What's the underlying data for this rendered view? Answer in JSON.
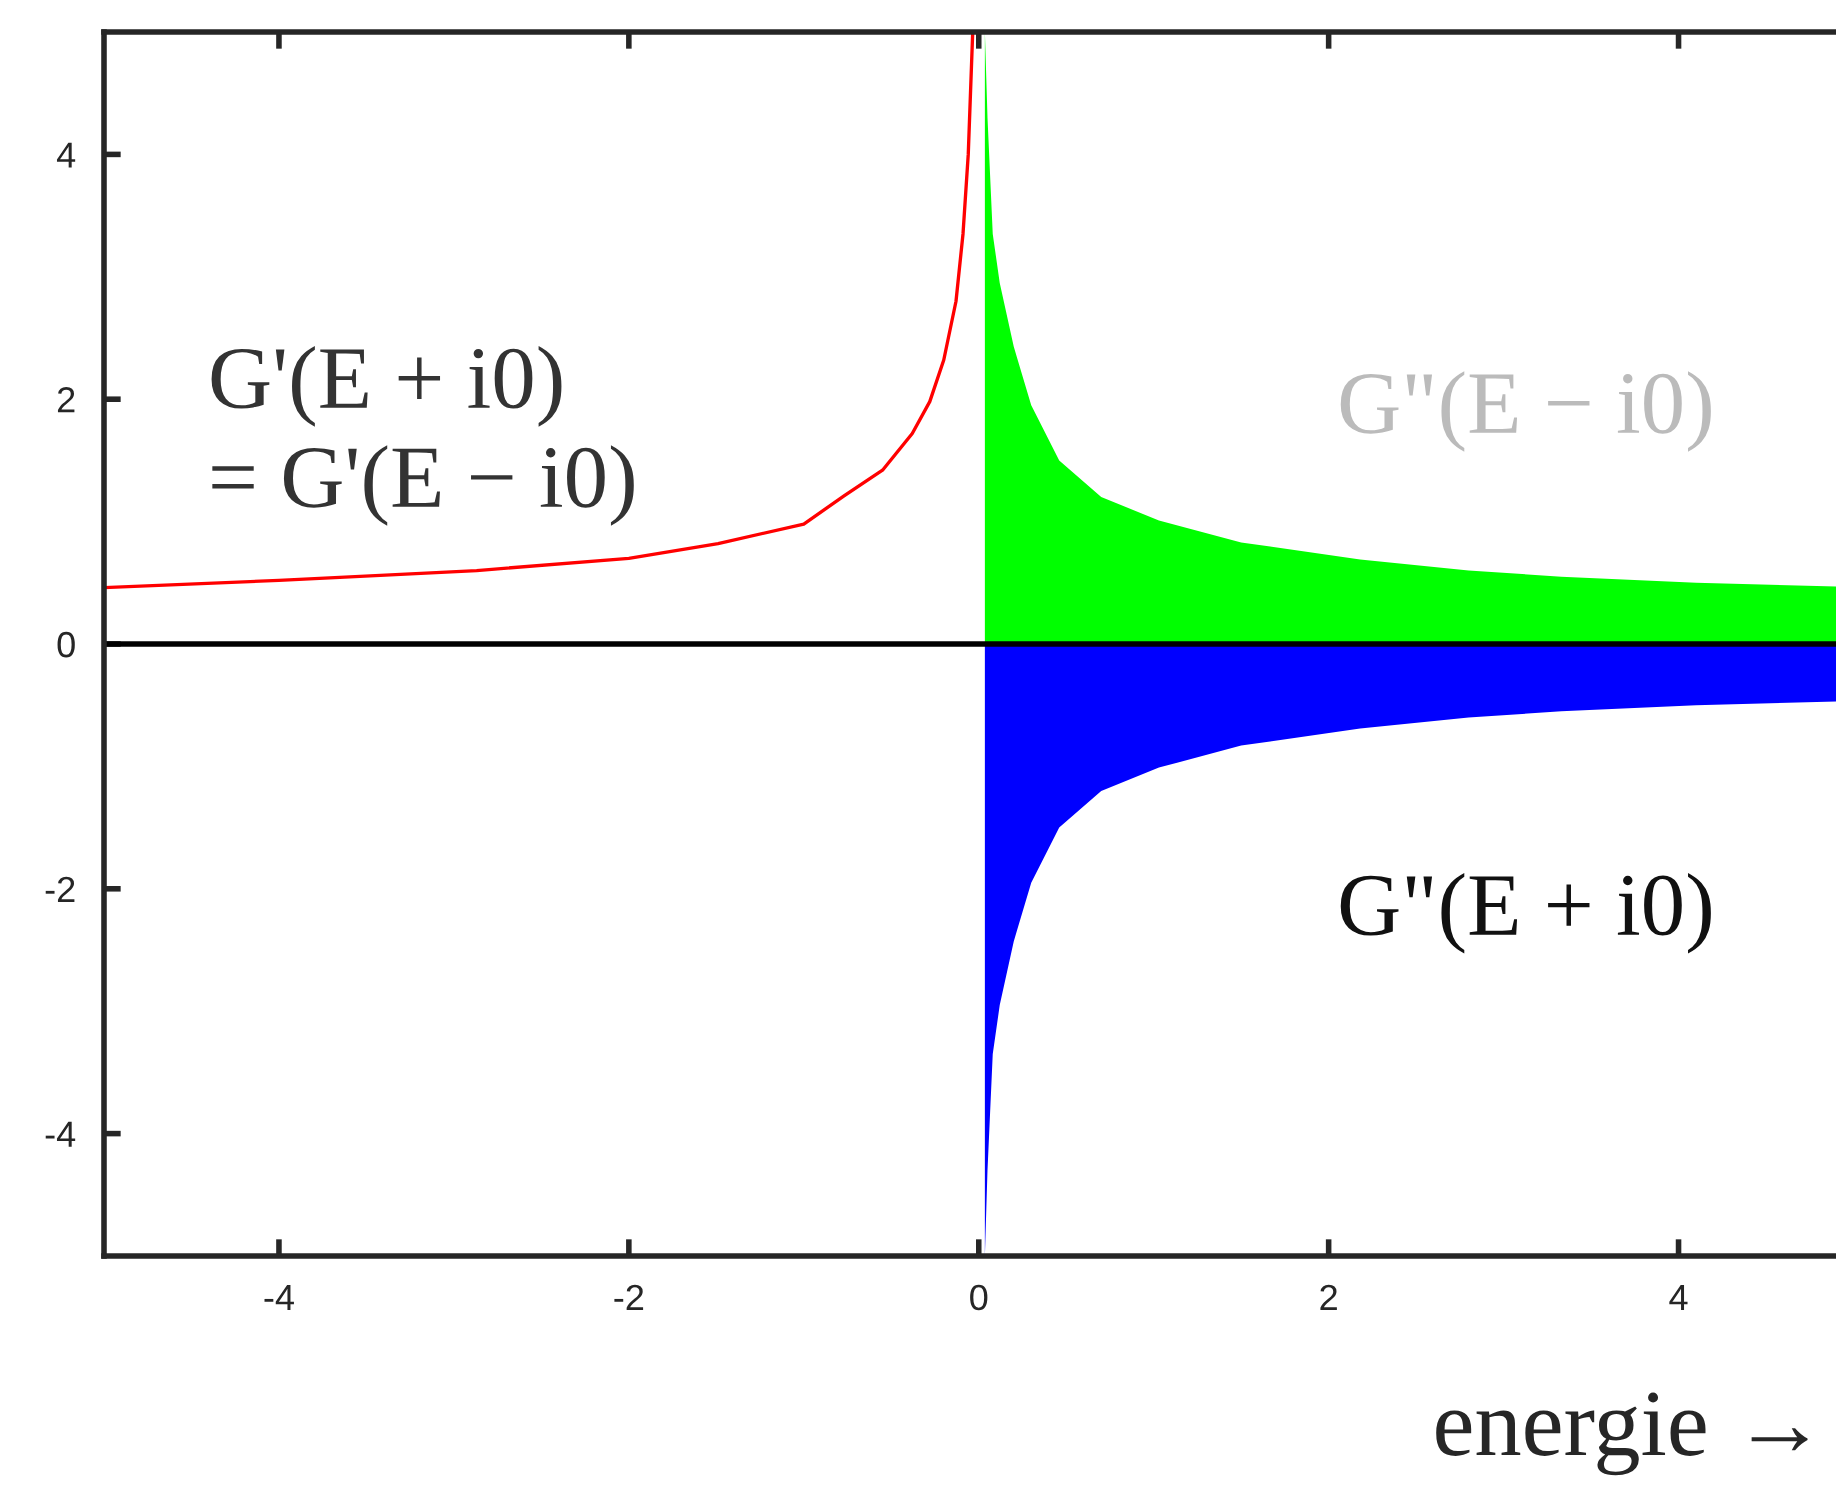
{
  "chart_data": {
    "type": "line",
    "xlabel": "energie →",
    "xlim": [
      -5,
      4.9
    ],
    "ylim": [
      -5,
      5
    ],
    "xticks": [
      -4,
      -2,
      0,
      2,
      4
    ],
    "yticks": [
      -4,
      -2,
      0,
      2,
      4
    ],
    "grid": false,
    "legend": false,
    "series": [
      {
        "color": "#ff0000",
        "x": [
          -5,
          -4,
          -2.87,
          -2,
          -1.49,
          -1,
          -0.77,
          -0.55,
          -0.38,
          -0.28,
          -0.2,
          -0.13,
          -0.09,
          -0.06,
          -0.035
        ],
        "values": [
          0.46,
          0.52,
          0.6,
          0.7,
          0.82,
          0.98,
          1.21,
          1.42,
          1.72,
          1.98,
          2.32,
          2.8,
          3.35,
          4.0,
          4.98
        ]
      },
      {
        "type": "area",
        "color": "#00ff00",
        "x": [
          0.035,
          0.05,
          0.08,
          0.12,
          0.2,
          0.3,
          0.46,
          0.7,
          1.03,
          1.5,
          2.18,
          2.8,
          3.33,
          4.1,
          4.9
        ],
        "values": [
          5,
          4.3,
          3.35,
          2.95,
          2.43,
          1.95,
          1.5,
          1.2,
          1.01,
          0.83,
          0.69,
          0.6,
          0.55,
          0.5,
          0.47
        ]
      },
      {
        "type": "area",
        "color": "#0000ff",
        "x": [
          0.035,
          0.05,
          0.08,
          0.12,
          0.2,
          0.3,
          0.46,
          0.7,
          1.03,
          1.5,
          2.18,
          2.8,
          3.33,
          4.1,
          4.9
        ],
        "values": [
          -5,
          -4.3,
          -3.35,
          -2.95,
          -2.43,
          -1.95,
          -1.5,
          -1.2,
          -1.01,
          -0.83,
          -0.69,
          -0.6,
          -0.55,
          -0.5,
          -0.47
        ]
      }
    ],
    "ref_lines": [
      {
        "axis": "y",
        "value": 0,
        "color": "#000000"
      }
    ],
    "annotations": [
      "G'(E + i0)\n= G'(E − i0)",
      "G\"(E − i0)",
      "G\"(E + i0)"
    ]
  }
}
